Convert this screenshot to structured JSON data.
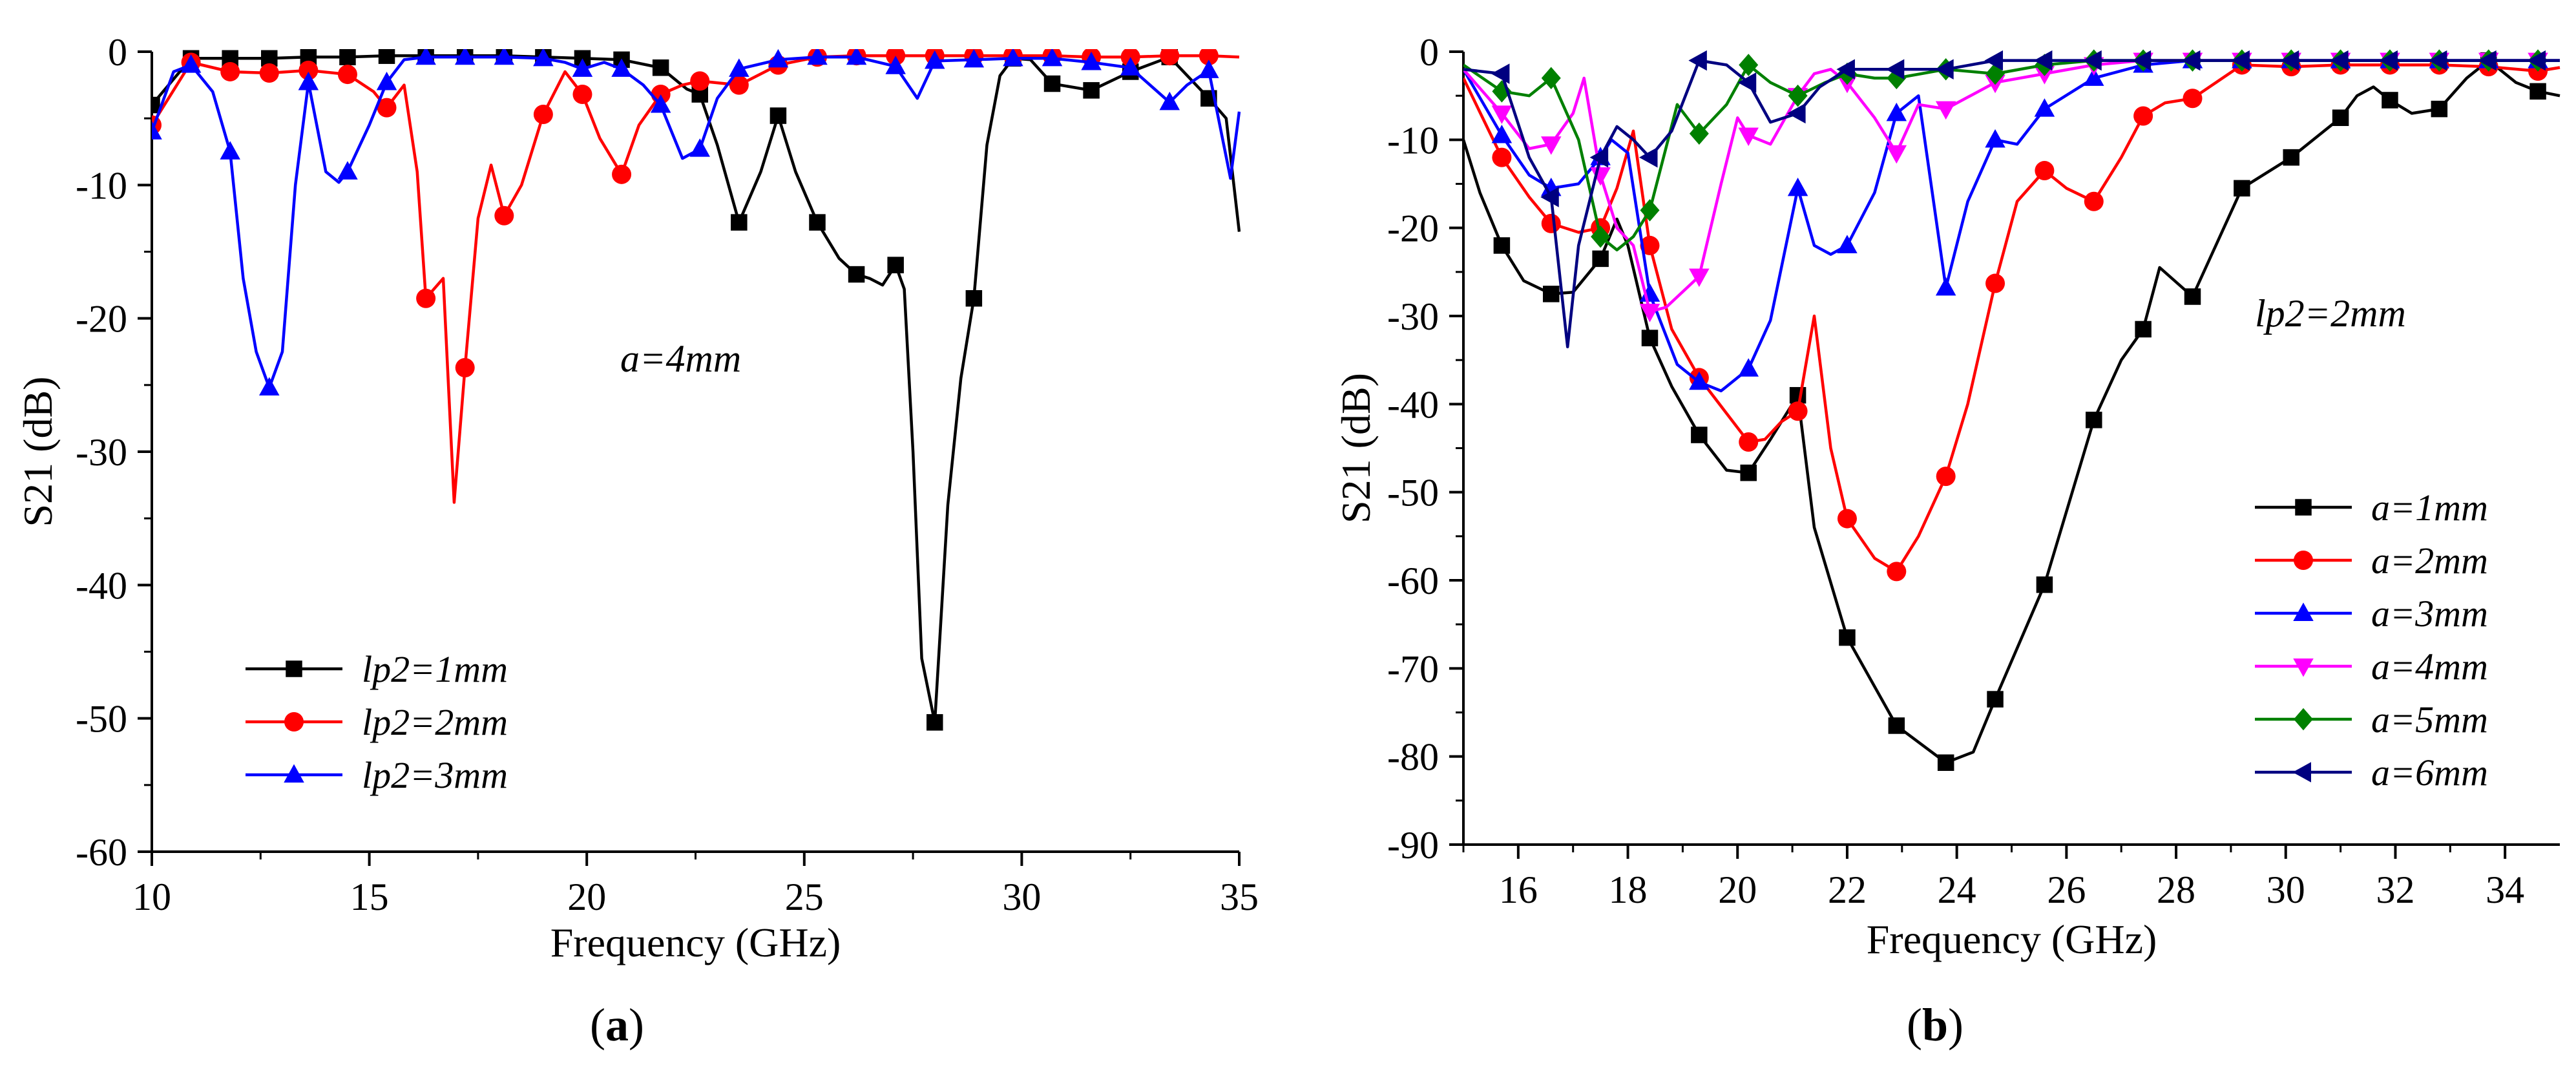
{
  "chart_data": [
    {
      "panel": "a",
      "panel_label": {
        "open": "(",
        "letter": "a",
        "close": ")"
      },
      "type": "line",
      "title": "",
      "xlabel": "Frequency (GHz)",
      "ylabel": "S21 (dB)",
      "xlim": [
        10,
        35
      ],
      "ylim": [
        -60,
        0
      ],
      "xticks": [
        10,
        15,
        20,
        25,
        30,
        35
      ],
      "yticks": [
        0,
        -10,
        -20,
        -30,
        -40,
        -50,
        -60
      ],
      "annotation": "a=4mm",
      "legend_position": "lower-left",
      "series": [
        {
          "name": "lp2=1mm",
          "color": "#000000",
          "marker": "square",
          "x": [
            10,
            10.9,
            11.8,
            12.7,
            13.6,
            14.5,
            15.4,
            16.3,
            17.2,
            18.1,
            19.0,
            19.9,
            20.8,
            21.7,
            22.3,
            22.6,
            23.0,
            23.5,
            24.0,
            24.4,
            24.8,
            25.3,
            25.8,
            26.2,
            26.5,
            26.8,
            27.1,
            27.3,
            27.5,
            27.7,
            28.0,
            28.3,
            28.6,
            28.9,
            29.2,
            29.5,
            29.8,
            30.2,
            30.7,
            31.6,
            32.5,
            33.4,
            34.3,
            34.7,
            35
          ],
          "y": [
            -4,
            -0.5,
            -0.5,
            -0.5,
            -0.4,
            -0.4,
            -0.3,
            -0.3,
            -0.3,
            -0.3,
            -0.4,
            -0.5,
            -0.6,
            -1.2,
            -2.8,
            -3.2,
            -7,
            -12.8,
            -9,
            -4.8,
            -9,
            -12.8,
            -15.5,
            -16.7,
            -17,
            -17.5,
            -16,
            -17.8,
            -30,
            -45.5,
            -50.3,
            -34,
            -24.5,
            -18.5,
            -7,
            -1.8,
            -0.5,
            -0.6,
            -2.4,
            -2.9,
            -1.5,
            -0.4,
            -3.5,
            -5,
            -13.5
          ],
          "markers_at_x": [
            10,
            10.9,
            11.8,
            12.7,
            13.6,
            14.5,
            15.4,
            16.3,
            17.2,
            18.1,
            19.0,
            19.9,
            20.8,
            21.7,
            22.6,
            23.5,
            24.4,
            25.3,
            26.2,
            27.1,
            28.0,
            28.9,
            29.8,
            30.7,
            31.6,
            32.5,
            33.4,
            34.3
          ]
        },
        {
          "name": "lp2=2mm",
          "color": "#ff0000",
          "marker": "circle",
          "x": [
            10,
            10.9,
            11.8,
            12.7,
            13.6,
            14.5,
            15.1,
            15.4,
            15.8,
            16.1,
            16.3,
            16.7,
            16.95,
            17.2,
            17.5,
            17.8,
            18.1,
            18.5,
            19.0,
            19.5,
            19.9,
            20.3,
            20.8,
            21.2,
            21.7,
            22.2,
            22.6,
            23.5,
            24.4,
            25.3,
            26.2,
            27.1,
            28.0,
            28.9,
            29.8,
            30.7,
            31.6,
            32.5,
            33.4,
            34.3,
            35
          ],
          "y": [
            -5.5,
            -0.8,
            -1.5,
            -1.6,
            -1.4,
            -1.7,
            -3,
            -4.2,
            -2.5,
            -9,
            -18.5,
            -17,
            -33.8,
            -23.7,
            -12.5,
            -8.5,
            -12.3,
            -10,
            -4.7,
            -1.5,
            -3.2,
            -6.5,
            -9.2,
            -5.5,
            -3.2,
            -2.5,
            -2.2,
            -2.5,
            -1,
            -0.4,
            -0.3,
            -0.3,
            -0.3,
            -0.3,
            -0.3,
            -0.3,
            -0.4,
            -0.4,
            -0.3,
            -0.3,
            -0.4
          ],
          "markers_at_x": [
            10,
            10.9,
            11.8,
            12.7,
            13.6,
            14.5,
            15.4,
            16.3,
            17.2,
            18.1,
            19.0,
            19.9,
            20.8,
            21.7,
            22.6,
            23.5,
            24.4,
            25.3,
            26.2,
            27.1,
            28.0,
            28.9,
            29.8,
            30.7,
            31.6,
            32.5,
            33.4,
            34.3
          ]
        },
        {
          "name": "lp2=3mm",
          "color": "#0000ff",
          "marker": "triangle-up",
          "x": [
            10,
            10.5,
            10.9,
            11.4,
            11.8,
            12.1,
            12.4,
            12.7,
            13.0,
            13.3,
            13.6,
            14.0,
            14.3,
            14.5,
            15.0,
            15.4,
            15.8,
            16.3,
            17.2,
            18.1,
            19.0,
            19.5,
            19.9,
            20.4,
            20.8,
            21.3,
            21.7,
            22.2,
            22.6,
            23.0,
            23.5,
            24.4,
            25.3,
            26.2,
            27.1,
            27.6,
            28.0,
            28.9,
            29.8,
            30.7,
            31.6,
            32.5,
            33.4,
            33.8,
            34.3,
            34.8,
            35
          ],
          "y": [
            -6,
            -1.5,
            -1,
            -3,
            -7.5,
            -17,
            -22.5,
            -25.2,
            -22.5,
            -10,
            -2.3,
            -9,
            -9.8,
            -9,
            -5.5,
            -2.3,
            -0.6,
            -0.4,
            -0.4,
            -0.4,
            -0.5,
            -0.8,
            -1.3,
            -0.8,
            -1.3,
            -2.5,
            -4,
            -8,
            -7.3,
            -3.5,
            -1.3,
            -0.6,
            -0.4,
            -0.4,
            -1.1,
            -3.5,
            -0.7,
            -0.6,
            -0.5,
            -0.5,
            -0.8,
            -1.2,
            -3.8,
            -2.5,
            -1.4,
            -9.5,
            -4.5
          ],
          "markers_at_x": [
            10,
            10.9,
            11.8,
            12.7,
            13.6,
            14.5,
            15.4,
            16.3,
            17.2,
            18.1,
            19.0,
            19.9,
            20.8,
            21.7,
            22.6,
            23.5,
            24.4,
            25.3,
            26.2,
            27.1,
            28.0,
            28.9,
            29.8,
            30.7,
            31.6,
            32.5,
            33.4,
            34.3
          ]
        }
      ]
    },
    {
      "panel": "b",
      "panel_label": {
        "open": "(",
        "letter": "b",
        "close": ")"
      },
      "type": "line",
      "title": "",
      "xlabel": "Frequency (GHz)",
      "ylabel": "S21 (dB)",
      "xlim": [
        15,
        35
      ],
      "ylim": [
        -90,
        0
      ],
      "xticks": [
        16,
        18,
        20,
        22,
        24,
        26,
        28,
        30,
        32,
        34
      ],
      "yticks": [
        0,
        -10,
        -20,
        -30,
        -40,
        -50,
        -60,
        -70,
        -80,
        -90
      ],
      "annotation": "lp2=2mm",
      "legend_position": "lower-right",
      "series": [
        {
          "name": "a=1mm",
          "color": "#000000",
          "marker": "square",
          "x": [
            15,
            15.3,
            15.7,
            16.1,
            16.6,
            17.0,
            17.5,
            17.8,
            18.0,
            18.4,
            18.8,
            19.3,
            19.8,
            20.2,
            20.6,
            21.1,
            21.4,
            22.0,
            22.9,
            23.8,
            24.3,
            24.7,
            25.6,
            26.5,
            27.0,
            27.4,
            27.7,
            28.3,
            29.2,
            30.1,
            31.0,
            31.3,
            31.6,
            31.9,
            32.3,
            32.8,
            33.3,
            33.7,
            34.2,
            34.6,
            35
          ],
          "y": [
            -10,
            -16,
            -22,
            -26,
            -27.5,
            -27.3,
            -23.5,
            -19,
            -22,
            -32.5,
            -38,
            -43.5,
            -47.5,
            -47.8,
            -44,
            -39,
            -54,
            -66.5,
            -76.5,
            -80.7,
            -79.5,
            -73.5,
            -60.5,
            -41.8,
            -35,
            -31.5,
            -24.5,
            -27.8,
            -15.5,
            -12,
            -7.5,
            -5,
            -4,
            -5.5,
            -7,
            -6.5,
            -3,
            -1,
            -3.5,
            -4.5,
            -5
          ],
          "markers_at_x": [
            15.7,
            16.6,
            17.5,
            18.4,
            19.3,
            20.2,
            21.1,
            22.0,
            22.9,
            23.8,
            24.7,
            25.6,
            26.5,
            27.4,
            28.3,
            29.2,
            30.1,
            31.0,
            31.9,
            32.8,
            33.7,
            34.6
          ]
        },
        {
          "name": "a=2mm",
          "color": "#ff0000",
          "marker": "circle",
          "x": [
            15,
            15.7,
            16.2,
            16.6,
            17.1,
            17.5,
            17.8,
            18.1,
            18.4,
            18.8,
            19.3,
            20.2,
            20.5,
            20.8,
            21.1,
            21.4,
            21.7,
            22.0,
            22.5,
            22.9,
            23.3,
            23.8,
            24.2,
            24.7,
            25.1,
            25.6,
            26.0,
            26.5,
            27.0,
            27.4,
            27.8,
            28.3,
            29.2,
            30.1,
            31.0,
            31.9,
            32.8,
            33.7,
            34.6,
            35
          ],
          "y": [
            -3,
            -12,
            -16.5,
            -19.5,
            -20.5,
            -20,
            -15.5,
            -9,
            -22,
            -31.5,
            -37,
            -44.3,
            -44,
            -42,
            -40.8,
            -30,
            -45,
            -53,
            -57.5,
            -59,
            -55,
            -48.2,
            -40,
            -26.3,
            -17,
            -13.5,
            -15.5,
            -17,
            -12,
            -7.3,
            -5.8,
            -5.3,
            -1.5,
            -1.7,
            -1.5,
            -1.5,
            -1.5,
            -1.7,
            -2.2,
            -1.8
          ],
          "markers_at_x": [
            15.7,
            16.6,
            17.5,
            18.4,
            19.3,
            20.2,
            21.1,
            22.0,
            22.9,
            23.8,
            24.7,
            25.6,
            26.5,
            27.4,
            28.3,
            29.2,
            30.1,
            31.0,
            31.9,
            32.8,
            33.7,
            34.6
          ]
        },
        {
          "name": "a=3mm",
          "color": "#0000ff",
          "marker": "triangle-up",
          "x": [
            15,
            15.7,
            16.2,
            16.6,
            17.1,
            17.5,
            17.7,
            18.0,
            18.4,
            18.9,
            19.3,
            19.7,
            20.2,
            20.6,
            21.1,
            21.4,
            21.7,
            22.0,
            22.5,
            22.9,
            23.3,
            23.8,
            24.2,
            24.7,
            25.1,
            25.6,
            26.5,
            27.4,
            28.3,
            29.2,
            30.1,
            31.0,
            31.9,
            32.8,
            33.7,
            34.6,
            35
          ],
          "y": [
            -2,
            -9.5,
            -14,
            -15.5,
            -15,
            -12,
            -10,
            -11.5,
            -27.5,
            -35.5,
            -37.5,
            -38.5,
            -36,
            -30.5,
            -15.5,
            -22,
            -23,
            -22,
            -16,
            -7,
            -5,
            -26.8,
            -17,
            -10,
            -10.5,
            -6.5,
            -3,
            -1.5,
            -1,
            -1,
            -1,
            -1,
            -1,
            -1,
            -1,
            -1,
            -1
          ],
          "markers_at_x": [
            15.7,
            16.6,
            17.5,
            18.4,
            19.3,
            20.2,
            21.1,
            22.0,
            22.9,
            23.8,
            24.7,
            25.6,
            26.5,
            27.4,
            28.3,
            29.2,
            30.1,
            31.0,
            31.9,
            32.8,
            33.7,
            34.6
          ]
        },
        {
          "name": "a=4mm",
          "color": "#ff00ff",
          "marker": "triangle-down",
          "x": [
            15,
            15.7,
            16.2,
            16.6,
            17.0,
            17.2,
            17.5,
            17.8,
            18.1,
            18.4,
            18.7,
            19.3,
            19.7,
            20.0,
            20.2,
            20.6,
            21.1,
            21.4,
            21.7,
            22.0,
            22.5,
            22.9,
            23.3,
            23.8,
            24.7,
            25.6,
            26.5,
            27.4,
            28.3,
            29.2,
            30.1,
            31.0,
            31.9,
            32.8,
            33.7,
            34.6,
            35
          ],
          "y": [
            -2,
            -7,
            -11,
            -10.5,
            -7,
            -3,
            -14,
            -20,
            -22,
            -29.5,
            -29,
            -25.5,
            -15,
            -7.5,
            -9.5,
            -10.5,
            -5,
            -2.5,
            -2,
            -3.5,
            -7.5,
            -11.5,
            -6,
            -6.5,
            -3.5,
            -2.5,
            -1.5,
            -1,
            -1,
            -1,
            -1,
            -1,
            -1,
            -1,
            -1,
            -1,
            -1
          ],
          "markers_at_x": [
            15.7,
            16.6,
            17.5,
            18.4,
            19.3,
            20.2,
            21.1,
            22.0,
            22.9,
            23.8,
            24.7,
            25.6,
            26.5,
            27.4,
            28.3,
            29.2,
            30.1,
            31.0,
            31.9,
            32.8,
            33.7,
            34.6
          ]
        },
        {
          "name": "a=5mm",
          "color": "#008000",
          "marker": "diamond",
          "x": [
            15,
            15.7,
            16.2,
            16.6,
            17.1,
            17.5,
            17.8,
            18.1,
            18.4,
            18.9,
            19.3,
            19.8,
            20.2,
            20.6,
            21.1,
            21.6,
            22.0,
            22.5,
            22.9,
            23.8,
            24.7,
            25.6,
            26.5,
            27.4,
            28.3,
            29.2,
            30.1,
            31.0,
            31.9,
            32.8,
            33.7,
            34.6,
            35
          ],
          "y": [
            -1.5,
            -4.5,
            -5,
            -3,
            -10,
            -21,
            -22.5,
            -21,
            -18,
            -6,
            -9.3,
            -6,
            -1.5,
            -3.5,
            -5,
            -3.5,
            -2.5,
            -3,
            -3,
            -2,
            -2.5,
            -1.5,
            -1,
            -1,
            -1,
            -1,
            -1,
            -1,
            -1,
            -1,
            -1,
            -1,
            -1
          ],
          "markers_at_x": [
            15.7,
            16.6,
            17.5,
            18.4,
            19.3,
            20.2,
            21.1,
            22.0,
            22.9,
            23.8,
            24.7,
            25.6,
            26.5,
            27.4,
            28.3,
            29.2,
            30.1,
            31.0,
            31.9,
            32.8,
            33.7,
            34.6
          ]
        },
        {
          "name": "a=6mm",
          "color": "#000080",
          "marker": "triangle-left",
          "x": [
            15,
            15.7,
            16.2,
            16.6,
            16.9,
            17.1,
            17.5,
            17.8,
            18.1,
            18.4,
            18.8,
            19.3,
            19.8,
            20.2,
            20.6,
            21.1,
            21.5,
            22.0,
            22.9,
            23.8,
            24.7,
            25.6,
            26.5,
            27.4,
            28.3,
            29.2,
            30.1,
            31.0,
            31.9,
            32.8,
            33.7,
            34.6,
            35
          ],
          "y": [
            -2,
            -2.5,
            -12,
            -16.5,
            -33.5,
            -22,
            -12,
            -8.5,
            -10,
            -12,
            -9,
            -1,
            -1.5,
            -3.5,
            -8,
            -7,
            -4,
            -2,
            -2,
            -2,
            -1,
            -1,
            -1,
            -1,
            -1,
            -1,
            -1,
            -1,
            -1,
            -1,
            -1,
            -1,
            -1
          ],
          "markers_at_x": [
            15.7,
            16.6,
            17.5,
            18.4,
            19.3,
            20.2,
            21.1,
            22.0,
            22.9,
            23.8,
            24.7,
            25.6,
            26.5,
            27.4,
            28.3,
            29.2,
            30.1,
            31.0,
            31.9,
            32.8,
            33.7,
            34.6
          ]
        }
      ]
    }
  ]
}
